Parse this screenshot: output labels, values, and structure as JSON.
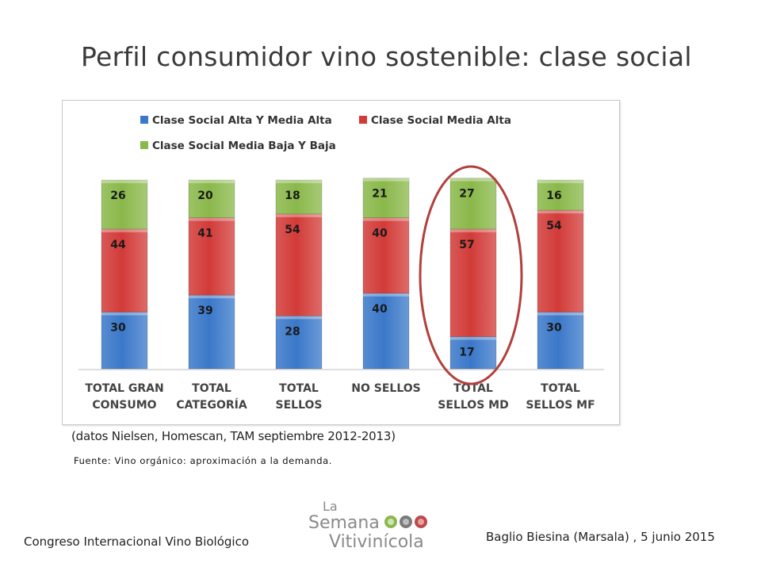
{
  "page": {
    "title": "Perfil consumidor vino sostenible: clase social",
    "note": "(datos Nielsen, Homescan, TAM septiembre 2012-2013)",
    "source": "Fuente: Vino orgánico: aproximación a la demanda.",
    "footer_left": "Congreso Internacional Vino Biológico",
    "footer_right": "Baglio Biesina (Marsala) ,  5 junio 2015",
    "logo": {
      "line1": "La",
      "line2": "Semana",
      "line3": "Vitivinícola"
    }
  },
  "chart_data": {
    "type": "bar",
    "stacked": true,
    "categories": [
      [
        "TOTAL GRAN",
        "CONSUMO"
      ],
      [
        "TOTAL",
        "CATEGORÍA"
      ],
      [
        "TOTAL",
        "SELLOS"
      ],
      [
        "NO SELLOS"
      ],
      [
        "TOTAL",
        "SELLOS MD"
      ],
      [
        "TOTAL",
        "SELLOS MF"
      ]
    ],
    "series": [
      {
        "name": "Clase Social Alta Y Media Alta",
        "color": "#3a78c9",
        "values": [
          30,
          39,
          28,
          40,
          17,
          30
        ]
      },
      {
        "name": "Clase Social Media Alta",
        "color": "#d23b38",
        "values": [
          44,
          41,
          54,
          40,
          57,
          54
        ]
      },
      {
        "name": "Clase Social Media Baja Y Baja",
        "color": "#8ab84a",
        "values": [
          26,
          20,
          18,
          21,
          27,
          16
        ]
      }
    ],
    "ylim": [
      0,
      100
    ],
    "legend": "top",
    "grid": false,
    "highlight_category": 4,
    "highlight_color": "#b2403c"
  }
}
